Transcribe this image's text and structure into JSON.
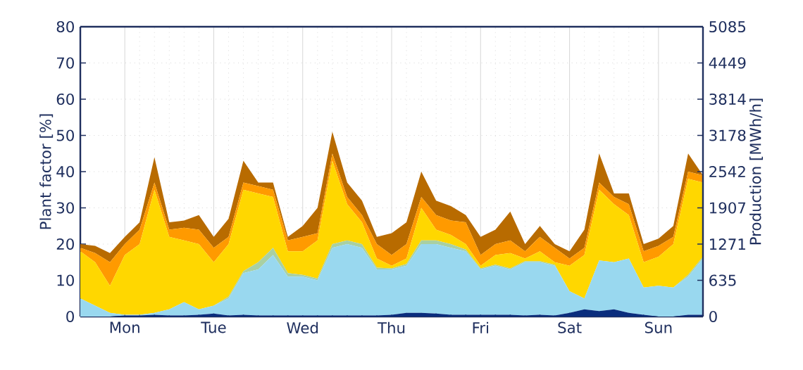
{
  "chart_data": {
    "type": "area",
    "stacked": true,
    "ylabel": "Plant factor [%]",
    "y2label": "Production [MWh/h]",
    "categories": [
      null,
      null,
      null,
      "Mon",
      null,
      null,
      null,
      null,
      null,
      "Tue",
      null,
      null,
      null,
      null,
      null,
      "Wed",
      null,
      null,
      null,
      null,
      null,
      "Thu",
      null,
      null,
      null,
      null,
      null,
      "Fri",
      null,
      null,
      null,
      null,
      null,
      "Sat",
      null,
      null,
      null,
      null,
      null,
      "Sun",
      null,
      null,
      null
    ],
    "ylim": [
      0,
      80
    ],
    "yticks": [
      0,
      10,
      20,
      30,
      40,
      50,
      60,
      70,
      80
    ],
    "y2lim": [
      0,
      5085
    ],
    "y2ticks": [
      0,
      635,
      1271,
      1907,
      2542,
      3178,
      3814,
      4449,
      5085
    ],
    "grid": true,
    "series": [
      {
        "color": "#0a2d7d",
        "values": [
          0,
          0,
          0,
          0.3,
          0.3,
          0.5,
          0.3,
          0.3,
          0.5,
          0.8,
          0.3,
          0.5,
          0.3,
          0.3,
          0.3,
          0.3,
          0.3,
          0.3,
          0.3,
          0.3,
          0.3,
          0.5,
          1,
          1,
          0.8,
          0.5,
          0.5,
          0.5,
          0.5,
          0.5,
          0.3,
          0.5,
          0.3,
          1,
          2,
          1.5,
          2,
          1,
          0.5,
          0,
          0,
          0.5,
          0.5
        ]
      },
      {
        "color": "#99d8ef",
        "values": [
          5,
          3,
          1,
          0.2,
          0.2,
          0.5,
          1.7,
          3.7,
          1.5,
          2.2,
          4.7,
          11.5,
          12.7,
          16.7,
          10.7,
          10.7,
          9.7,
          18.7,
          19.7,
          18.7,
          12.7,
          12.5,
          13,
          19,
          19.2,
          18.5,
          17.5,
          12.5,
          13.5,
          12.5,
          14.7,
          14.5,
          13.7,
          6,
          3,
          14,
          13,
          15,
          7.5,
          8.5,
          8,
          10.5,
          15.5
        ]
      },
      {
        "color": "#a9d0a2",
        "values": [
          0,
          0,
          0,
          0,
          0,
          0,
          0,
          0,
          0,
          0,
          0.5,
          0.5,
          2,
          2,
          1,
          0.5,
          0.5,
          1,
          1,
          1,
          0.5,
          0.3,
          0.5,
          1,
          1,
          1,
          0.5,
          0.3,
          0.3,
          0.3,
          0.3,
          0.3,
          0.3,
          0,
          0,
          0,
          0,
          0,
          0,
          0,
          0,
          0.5,
          0.5
        ]
      },
      {
        "color": "#ffd700",
        "values": [
          13,
          12,
          7.5,
          16.5,
          19.5,
          34,
          20,
          17,
          18,
          12,
          14.5,
          22.5,
          19,
          14,
          6,
          6.5,
          10.5,
          23,
          10,
          6,
          2.5,
          0.7,
          1.5,
          9,
          3,
          2.5,
          1.5,
          0.7,
          2.7,
          4.2,
          0.7,
          2.7,
          0.7,
          7,
          12,
          19.5,
          16,
          12,
          7,
          8,
          12,
          26.5,
          20.5
        ]
      },
      {
        "color": "#ff9a00",
        "values": [
          1,
          2.5,
          6.5,
          3,
          4,
          2,
          2,
          3.5,
          4,
          4,
          2,
          2,
          2,
          2,
          3,
          4,
          2,
          2,
          2,
          2,
          4,
          3,
          4,
          3,
          4,
          4,
          6,
          3,
          3,
          3.5,
          2,
          4,
          4,
          2,
          2,
          2,
          2,
          3,
          3,
          3,
          2,
          2,
          2
        ]
      },
      {
        "color": "#b86b00",
        "values": [
          1,
          2,
          2.5,
          2,
          2,
          7,
          2,
          2,
          4,
          3,
          5,
          6,
          1,
          2,
          1,
          3,
          7,
          6,
          4,
          4,
          2,
          6,
          6,
          7,
          4,
          4,
          2,
          5,
          4,
          8,
          2,
          3,
          1,
          2,
          5,
          8,
          1,
          3,
          2,
          2,
          3,
          5,
          0
        ]
      }
    ]
  }
}
